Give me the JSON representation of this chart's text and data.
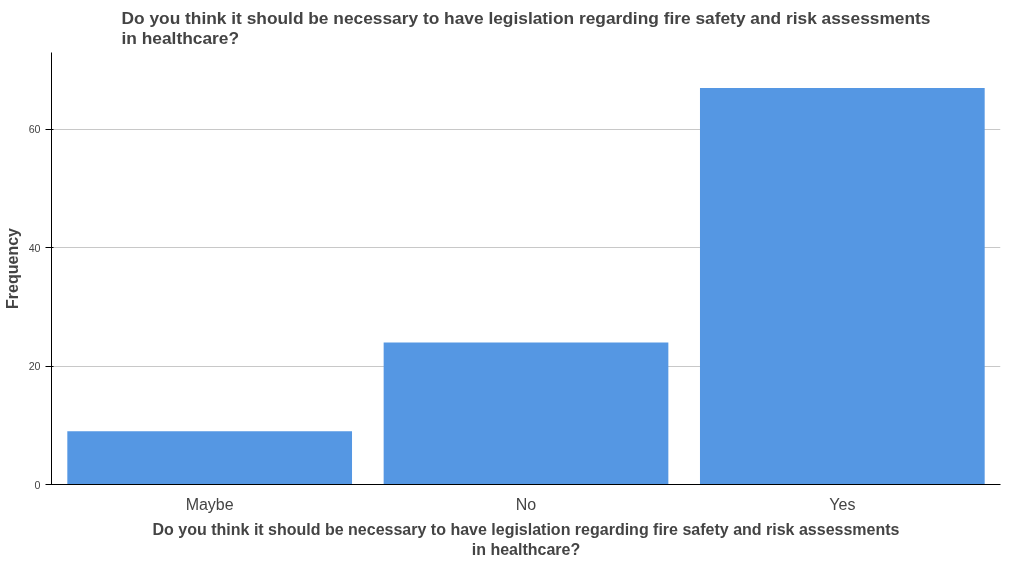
{
  "chart_data": {
    "type": "bar",
    "title": "Do you think it should be necessary to have legislation regarding fire safety and risk assessments in healthcare?",
    "xlabel": "Do you think it should be necessary to have legislation regarding fire safety and risk assessments in healthcare?",
    "ylabel": "Frequency",
    "categories": [
      "Maybe",
      "No",
      "Yes"
    ],
    "values": [
      9,
      24,
      67
    ],
    "color": "#5597e3",
    "ylim": [
      0,
      73
    ],
    "yticks": [
      0,
      20,
      40,
      60
    ],
    "grid": "y"
  }
}
